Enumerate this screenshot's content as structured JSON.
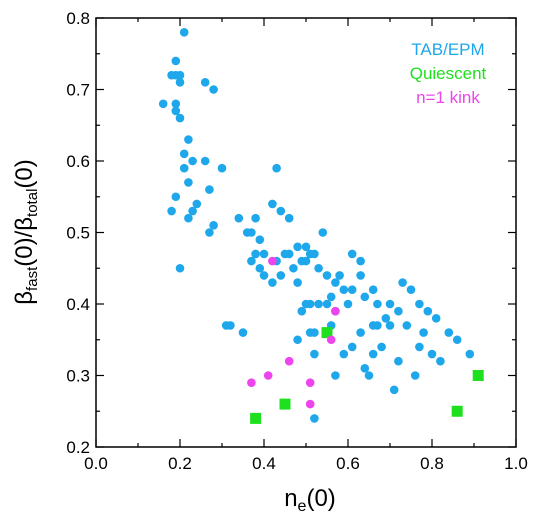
{
  "chart_data": {
    "type": "scatter",
    "xlim": [
      0.0,
      1.0
    ],
    "ylim": [
      0.2,
      0.8
    ],
    "x_ticks": [
      {
        "value": 0.0,
        "label": "0.0"
      },
      {
        "value": 0.2,
        "label": "0.2"
      },
      {
        "value": 0.4,
        "label": "0.4"
      },
      {
        "value": 0.6,
        "label": "0.6"
      },
      {
        "value": 0.8,
        "label": "0.8"
      },
      {
        "value": 1.0,
        "label": "1.0"
      }
    ],
    "y_ticks": [
      {
        "value": 0.2,
        "label": "0.2"
      },
      {
        "value": 0.3,
        "label": "0.3"
      },
      {
        "value": 0.4,
        "label": "0.4"
      },
      {
        "value": 0.5,
        "label": "0.5"
      },
      {
        "value": 0.6,
        "label": "0.6"
      },
      {
        "value": 0.7,
        "label": "0.7"
      },
      {
        "value": 0.8,
        "label": "0.8"
      }
    ],
    "xlabel": {
      "main": "n",
      "sub": "e",
      "rest": "(0)"
    },
    "ylabel": {
      "p1": "β",
      "s1": "fast",
      "p2": "(0)/β",
      "s2": "total",
      "p3": "(0)"
    },
    "legend_position": "top-right",
    "grid": false,
    "series": [
      {
        "name": "TAB/EPM",
        "color": "#1ea7ea",
        "points": [
          [
            0.21,
            0.78
          ],
          [
            0.19,
            0.74
          ],
          [
            0.18,
            0.72
          ],
          [
            0.19,
            0.72
          ],
          [
            0.2,
            0.72
          ],
          [
            0.2,
            0.71
          ],
          [
            0.26,
            0.71
          ],
          [
            0.28,
            0.7
          ],
          [
            0.16,
            0.68
          ],
          [
            0.19,
            0.68
          ],
          [
            0.19,
            0.67
          ],
          [
            0.2,
            0.66
          ],
          [
            0.22,
            0.63
          ],
          [
            0.21,
            0.61
          ],
          [
            0.23,
            0.6
          ],
          [
            0.21,
            0.59
          ],
          [
            0.26,
            0.6
          ],
          [
            0.3,
            0.59
          ],
          [
            0.43,
            0.59
          ],
          [
            0.22,
            0.57
          ],
          [
            0.27,
            0.56
          ],
          [
            0.19,
            0.55
          ],
          [
            0.24,
            0.54
          ],
          [
            0.18,
            0.53
          ],
          [
            0.23,
            0.53
          ],
          [
            0.22,
            0.52
          ],
          [
            0.28,
            0.51
          ],
          [
            0.27,
            0.5
          ],
          [
            0.34,
            0.52
          ],
          [
            0.38,
            0.52
          ],
          [
            0.42,
            0.54
          ],
          [
            0.44,
            0.53
          ],
          [
            0.46,
            0.52
          ],
          [
            0.36,
            0.5
          ],
          [
            0.37,
            0.5
          ],
          [
            0.39,
            0.49
          ],
          [
            0.38,
            0.47
          ],
          [
            0.4,
            0.47
          ],
          [
            0.37,
            0.46
          ],
          [
            0.39,
            0.45
          ],
          [
            0.43,
            0.46
          ],
          [
            0.45,
            0.47
          ],
          [
            0.46,
            0.47
          ],
          [
            0.48,
            0.48
          ],
          [
            0.5,
            0.48
          ],
          [
            0.49,
            0.46
          ],
          [
            0.47,
            0.45
          ],
          [
            0.44,
            0.44
          ],
          [
            0.42,
            0.43
          ],
          [
            0.48,
            0.43
          ],
          [
            0.5,
            0.46
          ],
          [
            0.51,
            0.47
          ],
          [
            0.52,
            0.47
          ],
          [
            0.53,
            0.45
          ],
          [
            0.54,
            0.5
          ],
          [
            0.2,
            0.45
          ],
          [
            0.4,
            0.44
          ],
          [
            0.55,
            0.44
          ],
          [
            0.57,
            0.43
          ],
          [
            0.58,
            0.44
          ],
          [
            0.59,
            0.42
          ],
          [
            0.61,
            0.42
          ],
          [
            0.63,
            0.44
          ],
          [
            0.61,
            0.47
          ],
          [
            0.63,
            0.46
          ],
          [
            0.56,
            0.41
          ],
          [
            0.6,
            0.4
          ],
          [
            0.64,
            0.41
          ],
          [
            0.66,
            0.42
          ],
          [
            0.67,
            0.4
          ],
          [
            0.7,
            0.4
          ],
          [
            0.73,
            0.43
          ],
          [
            0.75,
            0.42
          ],
          [
            0.72,
            0.39
          ],
          [
            0.67,
            0.37
          ],
          [
            0.5,
            0.4
          ],
          [
            0.51,
            0.4
          ],
          [
            0.53,
            0.4
          ],
          [
            0.49,
            0.39
          ],
          [
            0.55,
            0.4
          ],
          [
            0.57,
            0.39
          ],
          [
            0.63,
            0.36
          ],
          [
            0.66,
            0.37
          ],
          [
            0.69,
            0.38
          ],
          [
            0.7,
            0.37
          ],
          [
            0.74,
            0.37
          ],
          [
            0.77,
            0.4
          ],
          [
            0.79,
            0.39
          ],
          [
            0.81,
            0.38
          ],
          [
            0.78,
            0.36
          ],
          [
            0.77,
            0.34
          ],
          [
            0.8,
            0.33
          ],
          [
            0.82,
            0.32
          ],
          [
            0.86,
            0.35
          ],
          [
            0.89,
            0.33
          ],
          [
            0.31,
            0.37
          ],
          [
            0.32,
            0.37
          ],
          [
            0.35,
            0.36
          ],
          [
            0.48,
            0.35
          ],
          [
            0.51,
            0.36
          ],
          [
            0.52,
            0.36
          ],
          [
            0.56,
            0.37
          ],
          [
            0.59,
            0.33
          ],
          [
            0.61,
            0.34
          ],
          [
            0.64,
            0.31
          ],
          [
            0.66,
            0.33
          ],
          [
            0.68,
            0.34
          ],
          [
            0.65,
            0.3
          ],
          [
            0.72,
            0.32
          ],
          [
            0.76,
            0.3
          ],
          [
            0.71,
            0.28
          ],
          [
            0.57,
            0.3
          ],
          [
            0.52,
            0.24
          ],
          [
            0.84,
            0.36
          ],
          [
            0.52,
            0.33
          ]
        ]
      },
      {
        "name": "Quiescent",
        "color": "#1fe01f",
        "points": [
          [
            0.38,
            0.24
          ],
          [
            0.45,
            0.26
          ],
          [
            0.55,
            0.36
          ],
          [
            0.86,
            0.25
          ],
          [
            0.91,
            0.3
          ]
        ]
      },
      {
        "name": "n=1 kink",
        "color": "#ee44ee",
        "points": [
          [
            0.42,
            0.46
          ],
          [
            0.37,
            0.29
          ],
          [
            0.41,
            0.3
          ],
          [
            0.46,
            0.32
          ],
          [
            0.51,
            0.29
          ],
          [
            0.51,
            0.26
          ],
          [
            0.56,
            0.35
          ],
          [
            0.57,
            0.39
          ]
        ]
      }
    ]
  }
}
